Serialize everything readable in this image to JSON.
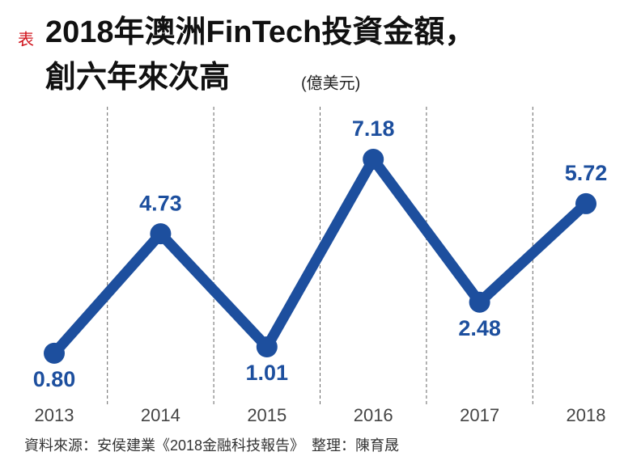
{
  "chart_data": {
    "type": "line",
    "title_prefix": "表",
    "title": [
      "2018年澳洲FinTech投資金額，",
      "創六年來次高"
    ],
    "unit": "(億美元)",
    "source": "資料來源：安侯建業《2018金融科技報告》　整理：陳育晟",
    "x": [
      2013,
      2014,
      2015,
      2016,
      2017,
      2018
    ],
    "series": [
      {
        "color": "#1d4f9e",
        "values": [
          0.8,
          4.73,
          1.01,
          7.18,
          2.48,
          5.72
        ],
        "value_labels": [
          "0.80",
          "4.73",
          "1.01",
          "7.18",
          "2.48",
          "5.72"
        ]
      }
    ]
  }
}
